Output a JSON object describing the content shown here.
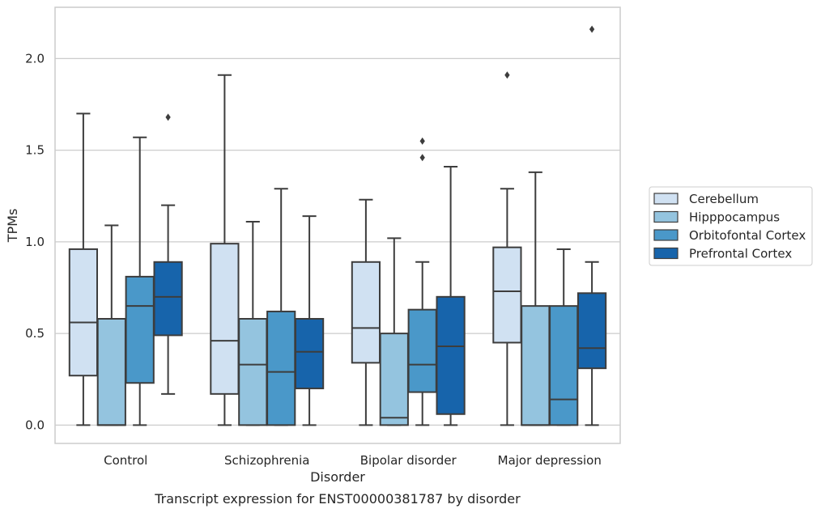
{
  "chart_data": {
    "type": "box",
    "xlabel": "Disorder",
    "ylabel": "TPMs",
    "caption": "Transcript expression for ENST00000381787 by disorder",
    "ylim": [
      -0.1,
      2.28
    ],
    "yticks": [
      0.0,
      0.5,
      1.0,
      1.5,
      2.0
    ],
    "ytick_labels": [
      "0.0",
      "0.5",
      "1.0",
      "1.5",
      "2.0"
    ],
    "grid": "horizontal",
    "legend_position": "right",
    "categories": [
      "Control",
      "Schizophrenia",
      "Bipolar disorder",
      "Major depression"
    ],
    "series": [
      {
        "name": "Cerebellum",
        "color": "#d0e1f2",
        "boxes": [
          {
            "whislo": 0.0,
            "q1": 0.27,
            "med": 0.56,
            "q3": 0.96,
            "whishi": 1.7,
            "fliers": []
          },
          {
            "whislo": 0.0,
            "q1": 0.17,
            "med": 0.46,
            "q3": 0.99,
            "whishi": 1.91,
            "fliers": []
          },
          {
            "whislo": 0.0,
            "q1": 0.34,
            "med": 0.53,
            "q3": 0.89,
            "whishi": 1.23,
            "fliers": []
          },
          {
            "whislo": 0.0,
            "q1": 0.45,
            "med": 0.73,
            "q3": 0.97,
            "whishi": 1.29,
            "fliers": [
              1.91
            ]
          }
        ]
      },
      {
        "name": "Hipppocampus",
        "color": "#94c4df",
        "boxes": [
          {
            "whislo": 0.0,
            "q1": 0.0,
            "med": 0.0,
            "q3": 0.58,
            "whishi": 1.09,
            "fliers": []
          },
          {
            "whislo": 0.0,
            "q1": 0.0,
            "med": 0.33,
            "q3": 0.58,
            "whishi": 1.11,
            "fliers": []
          },
          {
            "whislo": 0.0,
            "q1": 0.0,
            "med": 0.04,
            "q3": 0.5,
            "whishi": 1.02,
            "fliers": []
          },
          {
            "whislo": 0.0,
            "q1": 0.0,
            "med": 0.0,
            "q3": 0.65,
            "whishi": 1.38,
            "fliers": []
          }
        ]
      },
      {
        "name": "Orbitofontal Cortex",
        "color": "#4a98c9",
        "boxes": [
          {
            "whislo": 0.0,
            "q1": 0.23,
            "med": 0.65,
            "q3": 0.81,
            "whishi": 1.57,
            "fliers": []
          },
          {
            "whislo": 0.0,
            "q1": 0.0,
            "med": 0.29,
            "q3": 0.62,
            "whishi": 1.29,
            "fliers": []
          },
          {
            "whislo": 0.0,
            "q1": 0.18,
            "med": 0.33,
            "q3": 0.63,
            "whishi": 0.89,
            "fliers": [
              1.46,
              1.55
            ]
          },
          {
            "whislo": 0.0,
            "q1": 0.0,
            "med": 0.14,
            "q3": 0.65,
            "whishi": 0.96,
            "fliers": []
          }
        ]
      },
      {
        "name": "Prefrontal Cortex",
        "color": "#1764ab",
        "boxes": [
          {
            "whislo": 0.17,
            "q1": 0.49,
            "med": 0.7,
            "q3": 0.89,
            "whishi": 1.2,
            "fliers": [
              1.68
            ]
          },
          {
            "whislo": 0.0,
            "q1": 0.2,
            "med": 0.4,
            "q3": 0.58,
            "whishi": 1.14,
            "fliers": []
          },
          {
            "whislo": 0.0,
            "q1": 0.06,
            "med": 0.43,
            "q3": 0.7,
            "whishi": 1.41,
            "fliers": []
          },
          {
            "whislo": 0.0,
            "q1": 0.31,
            "med": 0.42,
            "q3": 0.72,
            "whishi": 0.89,
            "fliers": [
              2.16
            ]
          }
        ]
      }
    ]
  }
}
